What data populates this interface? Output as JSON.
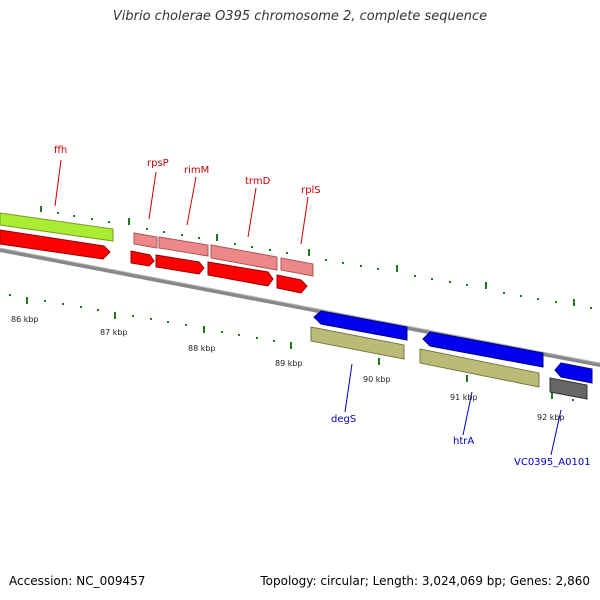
{
  "title": "Vibrio cholerae O395 chromosome 2, complete sequence",
  "accession": "Accession: NC_009457",
  "summary": "Topology: circular; Length: 3,024,069 bp; Genes: 2,860",
  "colors": {
    "backbone": "#888888",
    "tick": "#1a7a1a",
    "label_red": "#cc0000",
    "label_blue": "#0000cc",
    "gene_green": "#aaee33",
    "gene_red": "#ff0000",
    "gene_pink": "#ee8888",
    "gene_blue": "#0000ee",
    "gene_tan": "#bbbb77",
    "gene_gray": "#666666"
  },
  "kbp_labels": [
    "86 kbp",
    "87 kbp",
    "88 kbp",
    "89 kbp",
    "90 kbp",
    "91 kbp",
    "92 kbp"
  ],
  "gene_labels": [
    {
      "text": "ffh",
      "color": "red"
    },
    {
      "text": "rpsP",
      "color": "red"
    },
    {
      "text": "rimM",
      "color": "red"
    },
    {
      "text": "trmD",
      "color": "red"
    },
    {
      "text": "rplS",
      "color": "red"
    },
    {
      "text": "degS",
      "color": "blue"
    },
    {
      "text": "htrA",
      "color": "blue"
    },
    {
      "text": "VC0395_A0101",
      "color": "blue"
    }
  ]
}
